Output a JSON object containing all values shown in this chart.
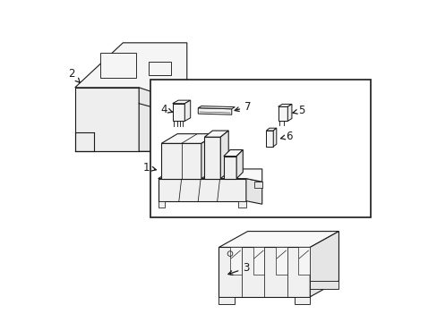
{
  "bg_color": "#ffffff",
  "line_color": "#1a1a1a",
  "line_width": 0.8,
  "fig_width": 4.89,
  "fig_height": 3.6
}
